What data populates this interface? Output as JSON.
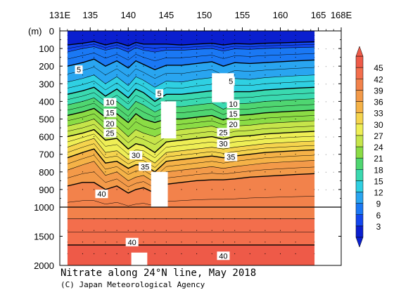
{
  "chart_data": {
    "type": "heatmap",
    "title": "Nitrate along 24°N line, May 2018",
    "credit": "(C) Japan Meteorological Agency",
    "x_axis": {
      "ticks": [
        "131E",
        "135",
        "140",
        "145",
        "150",
        "155",
        "160",
        "165",
        "168E"
      ],
      "tick_values": [
        131,
        135,
        140,
        145,
        150,
        155,
        160,
        165,
        168
      ],
      "range": [
        131,
        168
      ],
      "data_extent": [
        132,
        164.5
      ]
    },
    "y_axis": {
      "unit_label": "(m)",
      "ticks": [
        "0",
        "100",
        "200",
        "300",
        "400",
        "500",
        "600",
        "700",
        "800",
        "900",
        "1000",
        "1500",
        "2000"
      ],
      "tick_values": [
        0,
        100,
        200,
        300,
        400,
        500,
        600,
        700,
        800,
        900,
        1000,
        1500,
        2000
      ],
      "range": [
        0,
        2000
      ],
      "scale_break": 1000,
      "direction": "depth-down"
    },
    "colorbar": {
      "levels": [
        "3",
        "6",
        "9",
        "12",
        "15",
        "18",
        "21",
        "24",
        "27",
        "30",
        "33",
        "36",
        "39",
        "42",
        "45"
      ],
      "colors": [
        "#0a1fcf",
        "#1246ee",
        "#1a78f4",
        "#29a5f0",
        "#2fd0e2",
        "#3ad9b0",
        "#4fd671",
        "#8bdc45",
        "#c6e54a",
        "#eeee55",
        "#f5d44d",
        "#f5b247",
        "#f39a49",
        "#f2824b",
        "#f36e4c",
        "#ee5a48"
      ]
    },
    "contour_labels": [
      {
        "text": "5",
        "lon": 133.5,
        "depth": 220
      },
      {
        "text": "5",
        "lon": 144.1,
        "depth": 355
      },
      {
        "text": "5",
        "lon": 153.5,
        "depth": 285
      },
      {
        "text": "10",
        "lon": 137.6,
        "depth": 405
      },
      {
        "text": "10",
        "lon": 153.8,
        "depth": 415
      },
      {
        "text": "15",
        "lon": 137.6,
        "depth": 465
      },
      {
        "text": "15",
        "lon": 153.8,
        "depth": 470
      },
      {
        "text": "20",
        "lon": 137.6,
        "depth": 525
      },
      {
        "text": "20",
        "lon": 153.8,
        "depth": 530
      },
      {
        "text": "25",
        "lon": 137.6,
        "depth": 580
      },
      {
        "text": "25",
        "lon": 152.5,
        "depth": 575
      },
      {
        "text": "30",
        "lon": 141.0,
        "depth": 705
      },
      {
        "text": "30",
        "lon": 152.5,
        "depth": 640
      },
      {
        "text": "35",
        "lon": 142.2,
        "depth": 770
      },
      {
        "text": "35",
        "lon": 153.5,
        "depth": 715
      },
      {
        "text": "40",
        "lon": 136.5,
        "depth": 925
      },
      {
        "text": "40",
        "lon": 140.5,
        "depth": 1600
      },
      {
        "text": "40",
        "lon": 152.5,
        "depth": 1835
      }
    ],
    "no_data_regions": [
      {
        "lon": [
          151.0,
          153.9
        ],
        "depth": [
          240,
          405
        ]
      },
      {
        "lon": [
          144.3,
          146.3
        ],
        "depth": [
          400,
          610
        ]
      },
      {
        "lon": [
          143.0,
          145.2
        ],
        "depth": [
          800,
          1000
        ]
      },
      {
        "lon": [
          140.4,
          142.5
        ],
        "depth": [
          1780,
          2000
        ]
      }
    ],
    "profile": [
      {
        "lon": 132.0,
        "z": [
          80,
          120,
          200,
          290,
          360,
          420,
          480,
          540,
          600,
          660,
          720,
          790,
          880,
          1200,
          1650
        ]
      },
      {
        "lon": 134.0,
        "z": [
          70,
          100,
          180,
          270,
          340,
          400,
          460,
          520,
          580,
          630,
          690,
          760,
          860,
          1200,
          1650
        ]
      },
      {
        "lon": 135.5,
        "z": [
          60,
          90,
          160,
          250,
          320,
          380,
          440,
          500,
          560,
          610,
          670,
          740,
          860,
          1200,
          1650
        ]
      },
      {
        "lon": 137.0,
        "z": [
          80,
          110,
          200,
          300,
          370,
          430,
          490,
          560,
          620,
          690,
          750,
          820,
          900,
          1200,
          1650
        ]
      },
      {
        "lon": 138.5,
        "z": [
          65,
          95,
          170,
          260,
          330,
          400,
          470,
          540,
          610,
          680,
          740,
          800,
          880,
          1200,
          1650
        ]
      },
      {
        "lon": 140.0,
        "z": [
          85,
          120,
          210,
          310,
          380,
          450,
          520,
          600,
          670,
          730,
          780,
          850,
          920,
          1200,
          1650
        ]
      },
      {
        "lon": 141.0,
        "z": [
          65,
          95,
          170,
          260,
          330,
          400,
          470,
          560,
          640,
          710,
          760,
          830,
          900,
          1200,
          1650
        ]
      },
      {
        "lon": 142.0,
        "z": [
          75,
          110,
          190,
          280,
          350,
          420,
          500,
          580,
          650,
          710,
          760,
          820,
          890,
          1200,
          1650
        ]
      },
      {
        "lon": 143.5,
        "z": [
          75,
          120,
          220,
          320,
          400,
          460,
          520,
          600,
          690,
          750,
          800,
          860,
          920,
          1200,
          1650
        ]
      },
      {
        "lon": 145.0,
        "z": [
          75,
          110,
          195,
          285,
          360,
          430,
          500,
          570,
          630,
          690,
          740,
          800,
          870,
          1200,
          1650
        ]
      },
      {
        "lon": 147.0,
        "z": [
          80,
          110,
          195,
          290,
          360,
          430,
          500,
          560,
          620,
          680,
          730,
          790,
          860,
          1200,
          1650
        ]
      },
      {
        "lon": 149.0,
        "z": [
          75,
          105,
          185,
          275,
          350,
          420,
          490,
          550,
          610,
          670,
          720,
          780,
          850,
          1200,
          1650
        ]
      },
      {
        "lon": 151.0,
        "z": [
          70,
          100,
          175,
          265,
          340,
          410,
          480,
          540,
          600,
          660,
          710,
          770,
          845,
          1200,
          1650
        ]
      },
      {
        "lon": 152.5,
        "z": [
          80,
          115,
          200,
          300,
          375,
          445,
          505,
          560,
          615,
          670,
          720,
          780,
          845,
          1200,
          1650
        ]
      },
      {
        "lon": 154.0,
        "z": [
          72,
          102,
          180,
          270,
          345,
          415,
          480,
          540,
          600,
          660,
          710,
          770,
          840,
          1200,
          1650
        ]
      },
      {
        "lon": 156.0,
        "z": [
          75,
          105,
          185,
          275,
          345,
          410,
          475,
          535,
          595,
          650,
          700,
          760,
          830,
          1200,
          1650
        ]
      },
      {
        "lon": 158.0,
        "z": [
          70,
          100,
          180,
          265,
          335,
          400,
          465,
          525,
          585,
          640,
          690,
          750,
          825,
          1200,
          1650
        ]
      },
      {
        "lon": 160.0,
        "z": [
          68,
          97,
          175,
          260,
          330,
          395,
          460,
          520,
          580,
          635,
          685,
          745,
          820,
          1200,
          1650
        ]
      },
      {
        "lon": 162.0,
        "z": [
          65,
          95,
          170,
          255,
          325,
          390,
          455,
          515,
          575,
          630,
          680,
          740,
          815,
          1200,
          1650
        ]
      },
      {
        "lon": 164.5,
        "z": [
          62,
          92,
          165,
          250,
          320,
          385,
          450,
          510,
          570,
          625,
          675,
          735,
          810,
          1200,
          1650
        ]
      }
    ],
    "profile_note_levels": [
      1,
      3,
      5,
      7,
      9,
      11,
      13,
      15,
      17,
      19,
      21,
      23,
      25,
      27,
      29
    ]
  }
}
